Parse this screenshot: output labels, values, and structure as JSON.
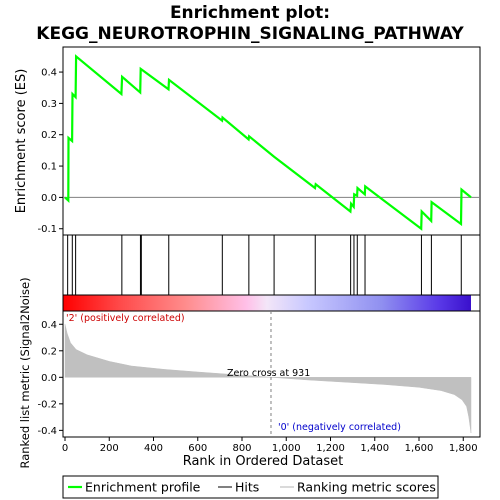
{
  "title_line1": "Enrichment plot:",
  "title_line2": "KEGG_NEUROTROPHIN_SIGNALING_PATHWAY",
  "colors": {
    "es_line": "#00ff00",
    "hits": "#000000",
    "metric_fill": "#c0c0c0",
    "positive_text": "#cc0000",
    "negative_text": "#0000cc",
    "zero_line": "#808080"
  },
  "chart_data": {
    "type": "line",
    "xlabel": "Rank in Ordered Dataset",
    "x_ticks": [
      0,
      200,
      400,
      600,
      800,
      1000,
      1200,
      1400,
      1600,
      1800
    ],
    "x_tick_labels": [
      "0",
      "200",
      "400",
      "600",
      "800",
      "1,000",
      "1,200",
      "1,400",
      "1,600",
      "1,800"
    ],
    "xlim": [
      0,
      1835
    ],
    "es_panel": {
      "ylabel": "Enrichment score (ES)",
      "ylim": [
        -0.12,
        0.48
      ],
      "y_ticks": [
        -0.1,
        0.0,
        0.1,
        0.2,
        0.3,
        0.4
      ],
      "y_tick_labels": [
        "-0.1",
        "0.0",
        "0.1",
        "0.2",
        "0.3",
        "0.4"
      ],
      "series": [
        {
          "name": "Enrichment profile",
          "x": [
            0,
            15,
            16,
            32,
            34,
            48,
            50,
            255,
            258,
            340,
            342,
            468,
            470,
            710,
            712,
            830,
            832,
            945,
            1130,
            1133,
            1290,
            1293,
            1305,
            1307,
            1320,
            1322,
            1355,
            1357,
            1610,
            1612,
            1655,
            1657,
            1790,
            1792,
            1835
          ],
          "y": [
            0.0,
            -0.01,
            0.19,
            0.18,
            0.33,
            0.32,
            0.45,
            0.33,
            0.385,
            0.335,
            0.41,
            0.345,
            0.375,
            0.245,
            0.255,
            0.185,
            0.195,
            0.13,
            0.03,
            0.042,
            -0.045,
            -0.02,
            -0.03,
            0.01,
            0.005,
            0.03,
            0.01,
            0.035,
            -0.1,
            -0.045,
            -0.075,
            -0.015,
            -0.085,
            0.025,
            0.0
          ]
        }
      ]
    },
    "hits": [
      12,
      33,
      48,
      257,
      341,
      345,
      469,
      711,
      831,
      945,
      1131,
      1291,
      1306,
      1321,
      1356,
      1611,
      1656,
      1791
    ],
    "metric_panel": {
      "ylabel": "Ranked list metric (Signal2Noise)",
      "ylim": [
        -0.45,
        0.5
      ],
      "y_ticks": [
        -0.4,
        -0.2,
        0.0,
        0.2,
        0.4
      ],
      "y_tick_labels": [
        "-0.4",
        "-0.2",
        "0.0",
        "0.2",
        "0.4"
      ],
      "zero_cross": 931,
      "zero_cross_label": "Zero cross at 931",
      "positive_label": "'2' (positively correlated)",
      "negative_label": "'0' (negatively correlated)",
      "profile_x": [
        0,
        10,
        25,
        50,
        100,
        200,
        300,
        450,
        600,
        750,
        931,
        1100,
        1300,
        1450,
        1600,
        1700,
        1760,
        1795,
        1815,
        1825,
        1835
      ],
      "profile_y": [
        0.4,
        0.33,
        0.26,
        0.21,
        0.17,
        0.12,
        0.085,
        0.06,
        0.04,
        0.022,
        0.0,
        -0.02,
        -0.04,
        -0.055,
        -0.075,
        -0.1,
        -0.13,
        -0.17,
        -0.22,
        -0.3,
        -0.42
      ]
    },
    "legend": [
      {
        "label": "Enrichment profile",
        "style": "green-line"
      },
      {
        "label": "Hits",
        "style": "black-line"
      },
      {
        "label": "Ranking metric scores",
        "style": "gray-line"
      }
    ]
  }
}
